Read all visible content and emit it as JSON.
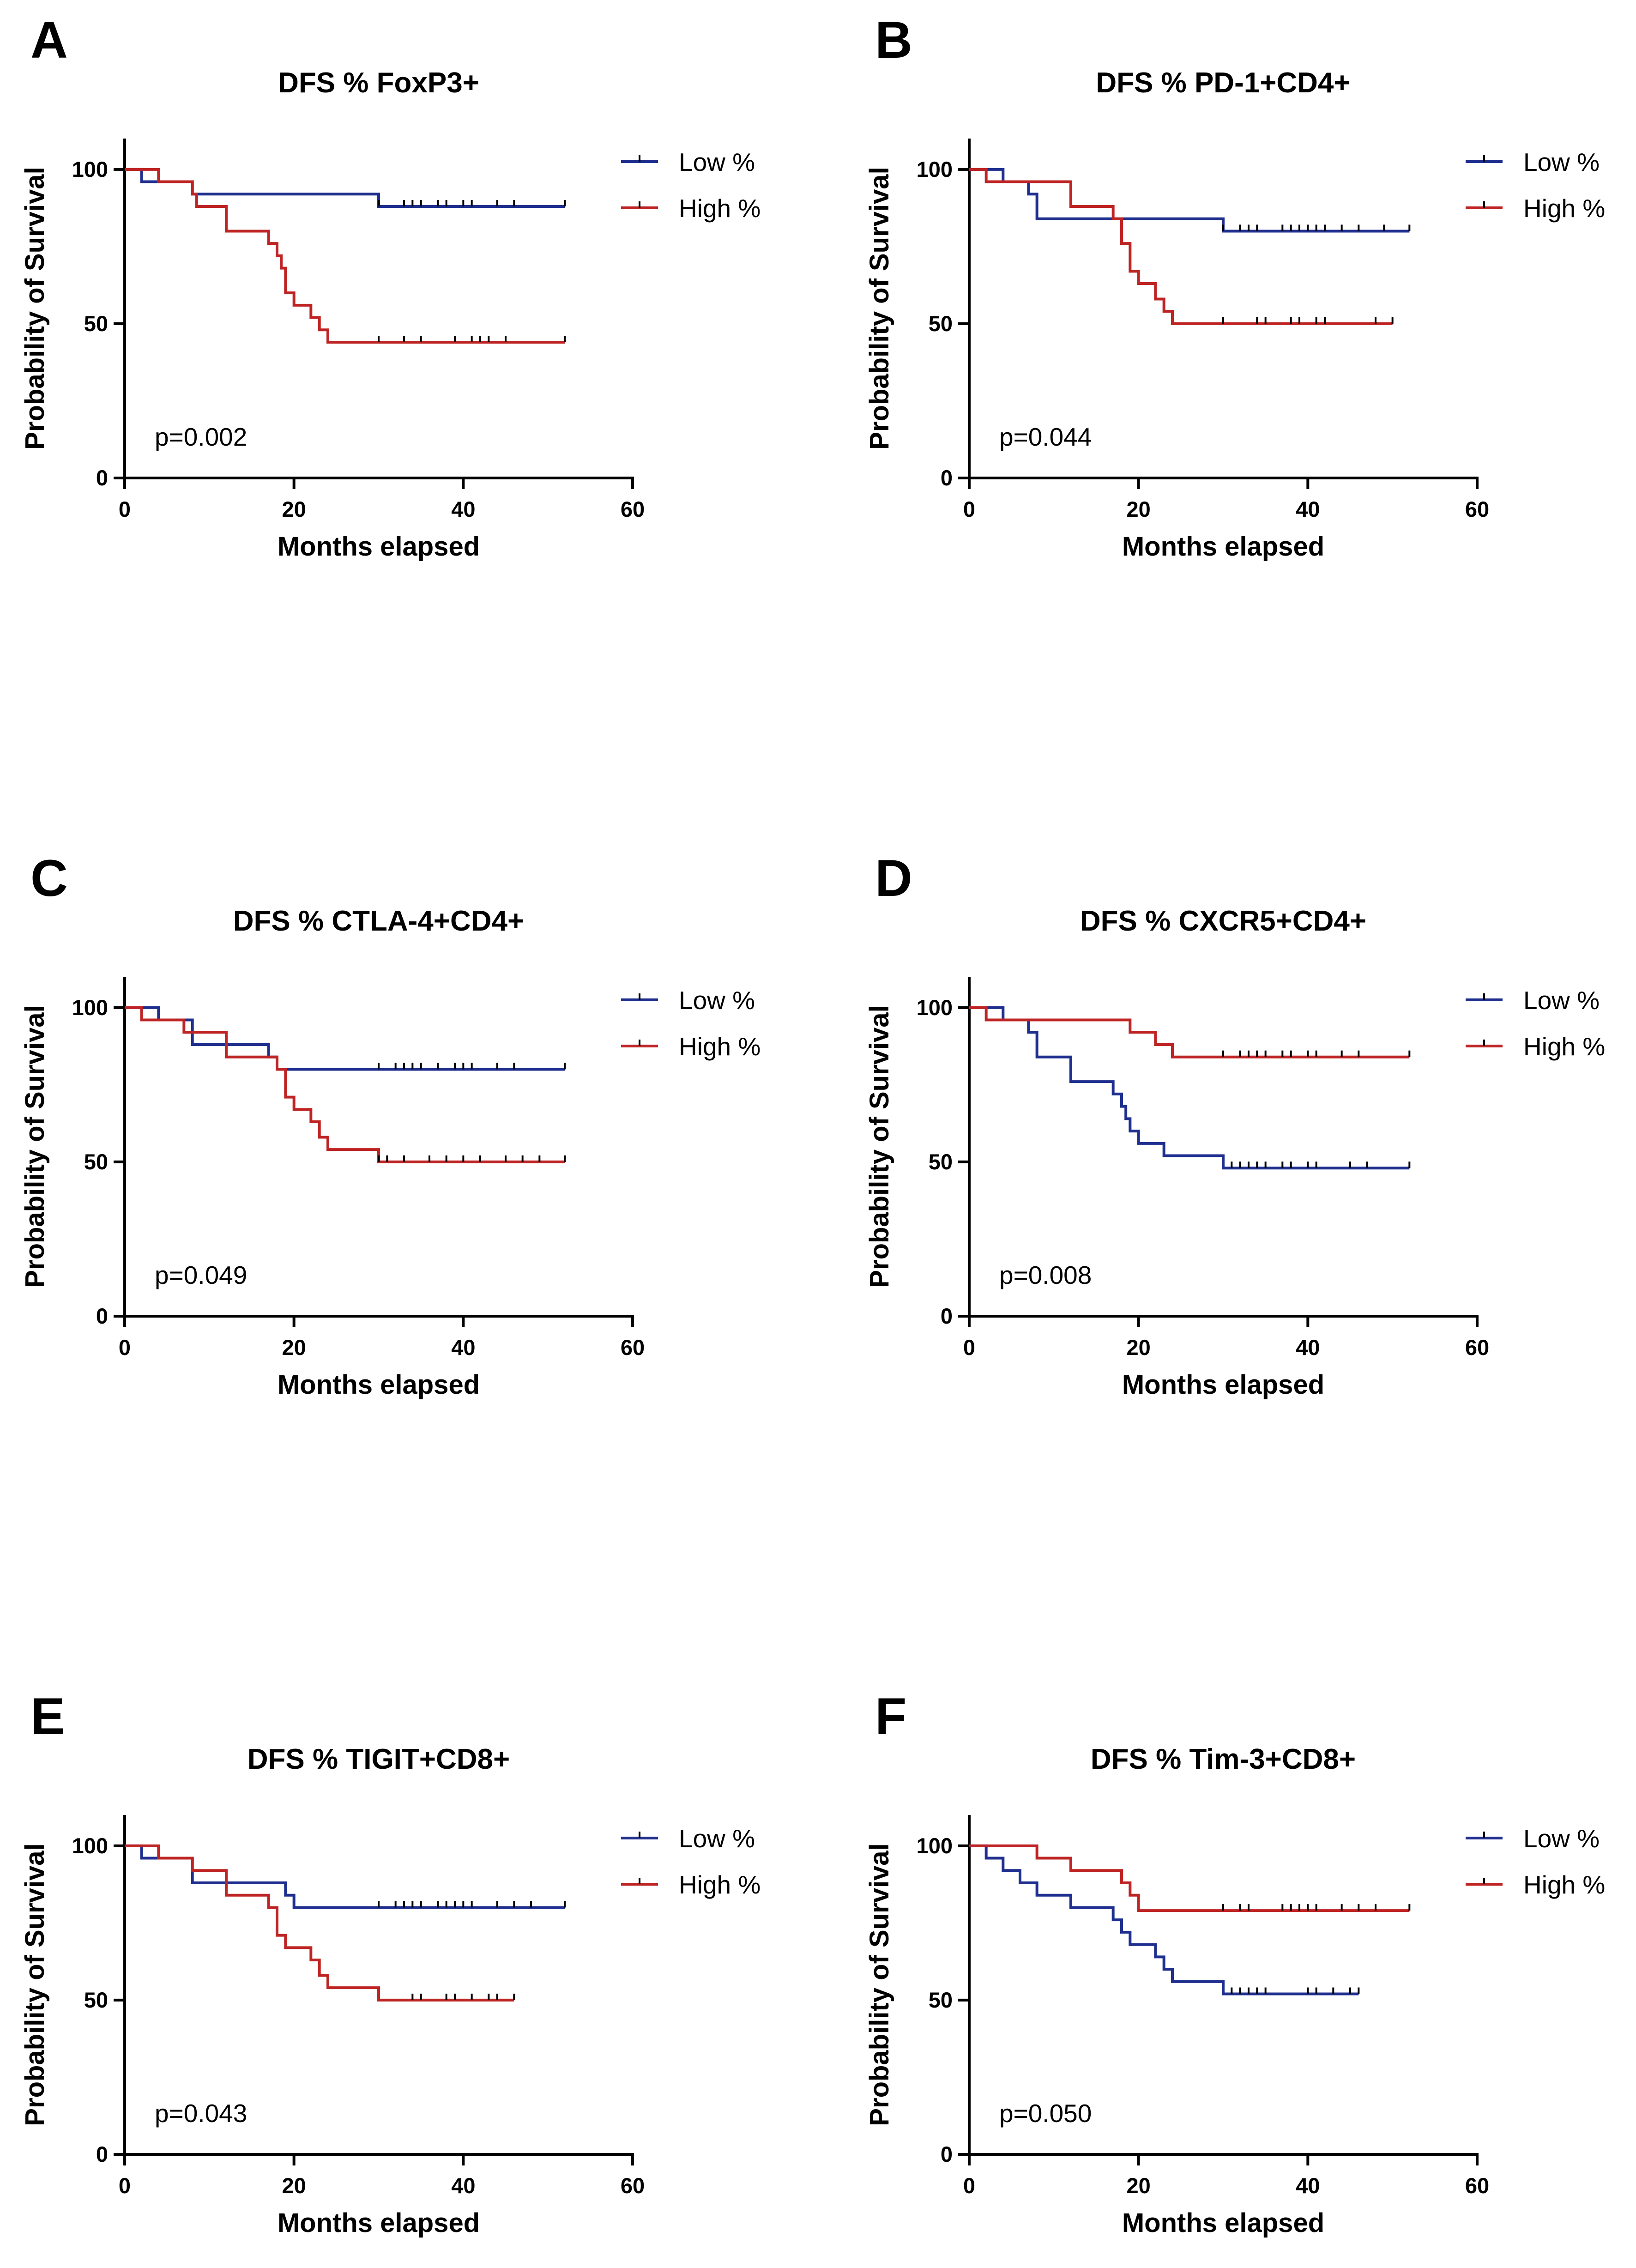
{
  "colors": {
    "low": "#1f2f8f",
    "high": "#bf2424",
    "axis": "#000000"
  },
  "chart_data": [
    {
      "panel": "A",
      "type": "line",
      "title": "DFS % FoxP3+",
      "xlabel": "Months elapsed",
      "ylabel": "Probability of Survival",
      "xlim": [
        0,
        60
      ],
      "ylim": [
        0,
        110
      ],
      "xticks": [
        "0",
        "20",
        "40",
        "60"
      ],
      "yticks": [
        "0",
        "50",
        "100"
      ],
      "pvalue": "p=0.002",
      "series": [
        {
          "name": "Low %",
          "steps": [
            [
              0,
              100
            ],
            [
              2,
              96
            ],
            [
              8,
              92
            ],
            [
              30,
              88
            ],
            [
              52,
              88
            ]
          ],
          "censored": [
            30,
            33,
            34,
            35,
            37,
            38,
            40,
            41,
            44,
            46,
            52
          ]
        },
        {
          "name": "High %",
          "steps": [
            [
              0,
              100
            ],
            [
              4,
              96
            ],
            [
              8,
              92
            ],
            [
              8.5,
              88
            ],
            [
              12,
              80
            ],
            [
              17,
              76
            ],
            [
              18,
              72
            ],
            [
              18.5,
              68
            ],
            [
              19,
              60
            ],
            [
              20,
              56
            ],
            [
              22,
              52
            ],
            [
              23,
              48
            ],
            [
              24,
              44
            ],
            [
              52,
              44
            ]
          ],
          "censored": [
            30,
            33,
            35,
            39,
            41,
            42,
            43,
            45,
            52
          ]
        }
      ]
    },
    {
      "panel": "B",
      "type": "line",
      "title": "DFS % PD-1+CD4+",
      "xlabel": "Months elapsed",
      "ylabel": "Probability of Survival",
      "xlim": [
        0,
        60
      ],
      "ylim": [
        0,
        110
      ],
      "xticks": [
        "0",
        "20",
        "40",
        "60"
      ],
      "yticks": [
        "0",
        "50",
        "100"
      ],
      "pvalue": "p=0.044",
      "series": [
        {
          "name": "Low %",
          "steps": [
            [
              0,
              100
            ],
            [
              4,
              96
            ],
            [
              7,
              92
            ],
            [
              8,
              84
            ],
            [
              30,
              80
            ],
            [
              52,
              80
            ]
          ],
          "censored": [
            30,
            32,
            33,
            34,
            37,
            38,
            39,
            40,
            41,
            42,
            44,
            46,
            49,
            52
          ]
        },
        {
          "name": "High %",
          "steps": [
            [
              0,
              100
            ],
            [
              2,
              96
            ],
            [
              12,
              88
            ],
            [
              17,
              84
            ],
            [
              18,
              76
            ],
            [
              19,
              67
            ],
            [
              20,
              63
            ],
            [
              22,
              58
            ],
            [
              23,
              54
            ],
            [
              24,
              50
            ],
            [
              50,
              50
            ]
          ],
          "censored": [
            30,
            34,
            35,
            38,
            39,
            41,
            42,
            48,
            50
          ]
        }
      ]
    },
    {
      "panel": "C",
      "type": "line",
      "title": "DFS % CTLA-4+CD4+",
      "xlabel": "Months elapsed",
      "ylabel": "Probability of Survival",
      "xlim": [
        0,
        60
      ],
      "ylim": [
        0,
        110
      ],
      "xticks": [
        "0",
        "20",
        "40",
        "60"
      ],
      "yticks": [
        "0",
        "50",
        "100"
      ],
      "pvalue": "p=0.049",
      "series": [
        {
          "name": "Low %",
          "steps": [
            [
              0,
              100
            ],
            [
              4,
              96
            ],
            [
              8,
              88
            ],
            [
              17,
              84
            ],
            [
              18,
              80
            ],
            [
              52,
              80
            ]
          ],
          "censored": [
            30,
            32,
            33,
            34,
            35,
            37,
            39,
            40,
            41,
            44,
            46,
            52
          ]
        },
        {
          "name": "High %",
          "steps": [
            [
              0,
              100
            ],
            [
              2,
              96
            ],
            [
              7,
              92
            ],
            [
              12,
              84
            ],
            [
              18,
              80
            ],
            [
              19,
              71
            ],
            [
              20,
              67
            ],
            [
              22,
              63
            ],
            [
              23,
              58
            ],
            [
              24,
              54
            ],
            [
              30,
              50
            ],
            [
              52,
              50
            ]
          ],
          "censored": [
            30,
            31,
            33,
            36,
            38,
            40,
            42,
            45,
            47,
            49,
            52
          ]
        }
      ]
    },
    {
      "panel": "D",
      "type": "line",
      "title": "DFS % CXCR5+CD4+",
      "xlabel": "Months elapsed",
      "ylabel": "Probability of Survival",
      "xlim": [
        0,
        60
      ],
      "ylim": [
        0,
        110
      ],
      "xticks": [
        "0",
        "20",
        "40",
        "60"
      ],
      "yticks": [
        "0",
        "50",
        "100"
      ],
      "pvalue": "p=0.008",
      "series": [
        {
          "name": "Low %",
          "steps": [
            [
              0,
              100
            ],
            [
              4,
              96
            ],
            [
              7,
              92
            ],
            [
              8,
              84
            ],
            [
              12,
              76
            ],
            [
              17,
              72
            ],
            [
              18,
              68
            ],
            [
              18.5,
              64
            ],
            [
              19,
              60
            ],
            [
              20,
              56
            ],
            [
              23,
              52
            ],
            [
              30,
              48
            ],
            [
              52,
              48
            ]
          ],
          "censored": [
            31,
            32,
            33,
            34,
            35,
            37,
            38,
            40,
            41,
            45,
            47,
            52
          ]
        },
        {
          "name": "High %",
          "steps": [
            [
              0,
              100
            ],
            [
              2,
              96
            ],
            [
              19,
              92
            ],
            [
              22,
              88
            ],
            [
              24,
              84
            ],
            [
              52,
              84
            ]
          ],
          "censored": [
            30,
            32,
            33,
            34,
            35,
            37,
            38,
            40,
            41,
            44,
            46,
            52
          ]
        }
      ]
    },
    {
      "panel": "E",
      "type": "line",
      "title": "DFS % TIGIT+CD8+",
      "xlabel": "Months elapsed",
      "ylabel": "Probability of Survival",
      "xlim": [
        0,
        60
      ],
      "ylim": [
        0,
        110
      ],
      "xticks": [
        "0",
        "20",
        "40",
        "60"
      ],
      "yticks": [
        "0",
        "50",
        "100"
      ],
      "pvalue": "p=0.043",
      "series": [
        {
          "name": "Low %",
          "steps": [
            [
              0,
              100
            ],
            [
              2,
              96
            ],
            [
              8,
              88
            ],
            [
              19,
              84
            ],
            [
              20,
              80
            ],
            [
              52,
              80
            ]
          ],
          "censored": [
            30,
            32,
            33,
            34,
            35,
            37,
            38,
            39,
            40,
            41,
            44,
            46,
            48,
            52
          ]
        },
        {
          "name": "High %",
          "steps": [
            [
              0,
              100
            ],
            [
              4,
              96
            ],
            [
              8,
              92
            ],
            [
              12,
              84
            ],
            [
              17,
              80
            ],
            [
              18,
              71
            ],
            [
              19,
              67
            ],
            [
              22,
              63
            ],
            [
              23,
              58
            ],
            [
              24,
              54
            ],
            [
              30,
              50
            ],
            [
              46,
              50
            ]
          ],
          "censored": [
            34,
            35,
            38,
            39,
            41,
            43,
            44,
            46
          ]
        }
      ]
    },
    {
      "panel": "F",
      "type": "line",
      "title": "DFS % Tim-3+CD8+",
      "xlabel": "Months elapsed",
      "ylabel": "Probability of Survival",
      "xlim": [
        0,
        60
      ],
      "ylim": [
        0,
        110
      ],
      "xticks": [
        "0",
        "20",
        "40",
        "60"
      ],
      "yticks": [
        "0",
        "50",
        "100"
      ],
      "pvalue": "p=0.050",
      "series": [
        {
          "name": "Low %",
          "steps": [
            [
              0,
              100
            ],
            [
              2,
              96
            ],
            [
              4,
              92
            ],
            [
              6,
              88
            ],
            [
              8,
              84
            ],
            [
              12,
              80
            ],
            [
              17,
              76
            ],
            [
              18,
              72
            ],
            [
              19,
              68
            ],
            [
              22,
              64
            ],
            [
              23,
              60
            ],
            [
              24,
              56
            ],
            [
              30,
              52
            ],
            [
              46,
              52
            ]
          ],
          "censored": [
            31,
            32,
            33,
            34,
            35,
            40,
            41,
            43,
            45,
            46
          ]
        },
        {
          "name": "High %",
          "steps": [
            [
              0,
              100
            ],
            [
              8,
              96
            ],
            [
              12,
              92
            ],
            [
              18,
              88
            ],
            [
              19,
              84
            ],
            [
              20,
              79
            ],
            [
              52,
              79
            ]
          ],
          "censored": [
            30,
            32,
            33,
            37,
            38,
            39,
            40,
            41,
            44,
            46,
            48,
            52
          ]
        }
      ]
    }
  ]
}
